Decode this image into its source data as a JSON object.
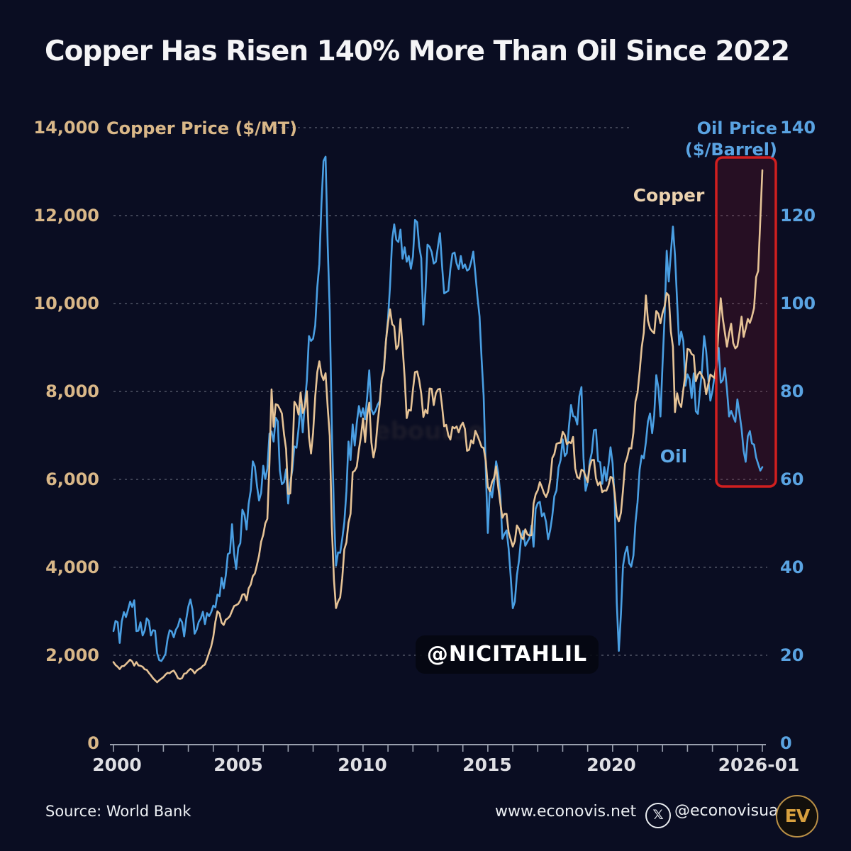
{
  "title": "Copper Has Risen 140% More Than Oil Since 2022",
  "axes": {
    "left_title": "Copper Price ($/MT)",
    "right_title": "Oil Price ($/Barrel)",
    "left_top_tick": "14,000",
    "right_top_tick": "140",
    "left_ticks": [
      "12,000",
      "10,000",
      "8,000",
      "6,000",
      "4,000",
      "2,000",
      "0"
    ],
    "right_ticks": [
      "120",
      "100",
      "80",
      "60",
      "40",
      "20",
      "0"
    ],
    "x_ticks": [
      "2000",
      "2005",
      "2010",
      "2015",
      "2020",
      "2026-01"
    ]
  },
  "series_labels": {
    "copper": "Copper",
    "oil": "Oil"
  },
  "watermark": "@NICITAHLIL",
  "faint_watermark": "ebourse",
  "footer": {
    "source": "Source: World Bank",
    "website": "www.econovis.net",
    "social": "@econovisuals",
    "x_icon_glyph": "𝕏",
    "logo": "EV"
  },
  "colors": {
    "background": "#0a0d22",
    "copper_line": "#e6c396",
    "oil_line": "#4a9fe3",
    "copper_text": "#d9b788",
    "oil_text": "#5aa3e2",
    "grid": "rgba(200,205,215,0.45)",
    "axis": "#9aa0ae",
    "highlight_red": "#d01f1f",
    "title_text": "#f4f4f6"
  },
  "chart_data": {
    "type": "line",
    "title": "Copper Has Risen 140% More Than Oil Since 2022",
    "frequency": "monthly",
    "x_start": "2000-01",
    "x_end": "2026-01",
    "x_tick_years": [
      2000,
      2005,
      2010,
      2015,
      2020,
      2026
    ],
    "y_left": {
      "label": "Copper Price ($/MT)",
      "range": [
        0,
        14000
      ],
      "tick_step": 2000
    },
    "y_right": {
      "label": "Oil Price ($/Barrel)",
      "range": [
        0,
        140
      ],
      "tick_step": 20
    },
    "grid": "dashed-horizontal",
    "highlight_box": {
      "from": "2024-02",
      "to": "2026-01",
      "color": "#d01f1f"
    },
    "series": [
      {
        "name": "Copper",
        "axis": "left",
        "units": "$/MT",
        "color": "#e6c396",
        "values": [
          1845,
          1779,
          1739,
          1685,
          1750,
          1755,
          1800,
          1848,
          1900,
          1858,
          1765,
          1845,
          1770,
          1760,
          1738,
          1680,
          1670,
          1600,
          1545,
          1480,
          1430,
          1385,
          1430,
          1468,
          1503,
          1560,
          1600,
          1590,
          1630,
          1650,
          1577,
          1480,
          1460,
          1482,
          1580,
          1590,
          1650,
          1690,
          1660,
          1590,
          1650,
          1685,
          1710,
          1760,
          1790,
          1920,
          2060,
          2200,
          2423,
          2760,
          3000,
          2950,
          2740,
          2690,
          2810,
          2840,
          2890,
          3010,
          3120,
          3140,
          3170,
          3250,
          3380,
          3390,
          3250,
          3520,
          3610,
          3800,
          3860,
          4060,
          4270,
          4580,
          4740,
          5000,
          5103,
          6388,
          8046,
          7198,
          7712,
          7690,
          7602,
          7500,
          7029,
          6691,
          5670,
          5680,
          6452,
          7766,
          7682,
          7475,
          7973,
          7510,
          7649,
          8008,
          6967,
          6588,
          7061,
          7887,
          8439,
          8685,
          8383,
          8260,
          8414,
          7635,
          6990,
          4926,
          3717,
          3072,
          3221,
          3315,
          3750,
          4407,
          4569,
          5014,
          5216,
          6165,
          6196,
          6288,
          6676,
          6982,
          7386,
          6848,
          7463,
          7745,
          6838,
          6499,
          6735,
          7284,
          7709,
          8292,
          8470,
          9147,
          9556,
          9868,
          9530,
          9483,
          8960,
          9045,
          9650,
          9041,
          8315,
          7394,
          7581,
          7565,
          8040,
          8441,
          8457,
          8260,
          7950,
          7420,
          7584,
          7500,
          8068,
          8060,
          7690,
          7962,
          8047,
          8061,
          7662,
          7207,
          7240,
          7000,
          6907,
          7193,
          7159,
          7203,
          7071,
          7215,
          7291,
          7149,
          6650,
          6674,
          6891,
          6821,
          7105,
          7000,
          6872,
          6737,
          6713,
          6420,
          5831,
          5729,
          5940,
          6037,
          6295,
          5833,
          5457,
          5127,
          5217,
          5216,
          4800,
          4639,
          4472,
          4599,
          4954,
          4873,
          4695,
          4642,
          4865,
          4751,
          4722,
          4731,
          5451,
          5660,
          5755,
          5941,
          5825,
          5684,
          5600,
          5720,
          5985,
          6486,
          6577,
          6808,
          6827,
          6834,
          7080,
          7007,
          6799,
          6852,
          6825,
          6966,
          6250,
          6051,
          6020,
          6220,
          6195,
          6075,
          5939,
          6300,
          6439,
          6445,
          6018,
          5868,
          5940,
          5710,
          5746,
          5742,
          5860,
          6059,
          6031,
          5686,
          5178,
          5048,
          5240,
          5754,
          6353,
          6499,
          6712,
          6703,
          7063,
          7772,
          7971,
          8460,
          9004,
          9336,
          10184,
          9613,
          9434,
          9370,
          9324,
          9830,
          9766,
          9550,
          9782,
          9941,
          10237,
          10183,
          9361,
          9017,
          7530,
          7959,
          7736,
          7646,
          8046,
          8392,
          8966,
          8950,
          8850,
          8823,
          8233,
          8383,
          8446,
          8352,
          8266,
          7939,
          8166,
          8386,
          8345,
          8307,
          8680,
          9466,
          10120,
          9650,
          9330,
          9020,
          9320,
          9540,
          9100,
          8980,
          9030,
          9330,
          9700,
          9240,
          9430,
          9650,
          9560,
          9700,
          9900,
          10600,
          10740,
          11900,
          13030
        ]
      },
      {
        "name": "Oil",
        "axis": "right",
        "units": "$/Barrel",
        "color": "#4a9fe3",
        "values": [
          25.5,
          27.8,
          27.5,
          22.8,
          27.7,
          29.8,
          28.7,
          30.3,
          32.2,
          31.0,
          32.5,
          25.5,
          25.6,
          27.5,
          24.5,
          25.6,
          28.4,
          27.8,
          24.5,
          25.7,
          25.6,
          20.5,
          18.9,
          18.7,
          19.4,
          20.3,
          23.7,
          25.7,
          25.4,
          24.1,
          25.8,
          26.6,
          28.3,
          27.5,
          24.3,
          28.2,
          31.1,
          32.7,
          30.4,
          24.9,
          25.8,
          27.6,
          28.4,
          29.9,
          27.1,
          29.6,
          28.9,
          29.8,
          31.3,
          30.9,
          33.8,
          33.4,
          37.6,
          35.2,
          38.2,
          43.0,
          43.3,
          49.8,
          43.1,
          39.6,
          44.5,
          45.5,
          53.1,
          51.9,
          48.6,
          54.4,
          57.5,
          64.1,
          62.9,
          58.5,
          55.2,
          56.9,
          63.1,
          60.1,
          62.4,
          70.4,
          70.9,
          68.6,
          74.0,
          73.2,
          62.0,
          58.9,
          59.4,
          62.3,
          54.5,
          59.3,
          62.1,
          67.5,
          67.2,
          71.5,
          77.0,
          70.7,
          77.2,
          82.5,
          92.6,
          91.5,
          92.0,
          95.0,
          103.7,
          109.0,
          122.8,
          132.4,
          133.4,
          113.2,
          98.1,
          71.9,
          52.5,
          40.4,
          43.4,
          43.3,
          46.5,
          50.2,
          57.3,
          68.6,
          64.4,
          72.5,
          67.7,
          72.8,
          76.7,
          74.3,
          76.2,
          73.7,
          78.8,
          84.8,
          75.9,
          74.8,
          75.6,
          77.0,
          77.8,
          82.7,
          85.3,
          91.4,
          96.5,
          104.0,
          114.6,
          118.0,
          114.5,
          114.0,
          116.8,
          110.2,
          112.8,
          109.5,
          110.8,
          107.9,
          110.7,
          119.0,
          118.5,
          113.0,
          110.3,
          95.2,
          102.6,
          113.4,
          112.9,
          111.7,
          109.1,
          109.5,
          112.9,
          116.0,
          108.5,
          102.3,
          102.6,
          102.9,
          107.9,
          111.3,
          111.6,
          109.1,
          107.8,
          110.8,
          108.1,
          108.9,
          107.5,
          107.8,
          109.5,
          111.8,
          106.8,
          101.6,
          97.1,
          87.4,
          79.0,
          62.3,
          47.8,
          58.1,
          55.9,
          59.5,
          64.1,
          61.5,
          56.6,
          46.5,
          47.6,
          48.4,
          44.3,
          38.0,
          30.7,
          32.2,
          38.2,
          41.6,
          46.7,
          48.3,
          44.9,
          45.8,
          46.6,
          49.5,
          44.7,
          53.3,
          54.6,
          54.9,
          51.6,
          52.3,
          50.3,
          46.4,
          48.5,
          51.7,
          56.2,
          57.5,
          62.7,
          64.4,
          69.1,
          65.3,
          66.0,
          72.1,
          76.9,
          74.4,
          74.2,
          72.5,
          78.9,
          81.0,
          64.8,
          57.4,
          59.4,
          64.0,
          66.1,
          71.2,
          71.3,
          64.2,
          63.9,
          59.0,
          62.8,
          59.7,
          63.2,
          67.3,
          63.7,
          55.5,
          32.0,
          21.0,
          29.4,
          40.3,
          43.2,
          44.7,
          40.9,
          40.2,
          42.7,
          50.2,
          54.8,
          62.3,
          65.4,
          64.8,
          68.5,
          73.2,
          75.0,
          70.5,
          74.6,
          83.7,
          80.8,
          74.3,
          86.0,
          97.1,
          112.0,
          105.0,
          111.5,
          117.5,
          111.0,
          100.5,
          90.6,
          93.6,
          91.4,
          81.3,
          83.9,
          82.8,
          78.5,
          84.1,
          75.5,
          74.9,
          80.1,
          85.1,
          92.6,
          89.1,
          82.9,
          77.9,
          80.1,
          83.5,
          85.4,
          89.9,
          82.0,
          82.6,
          85.3,
          80.4,
          74.3,
          75.6,
          74.3,
          73.1,
          78.2,
          75.1,
          71.5,
          66.5,
          64.0,
          69.8,
          71.0,
          68.2,
          67.9,
          65.0,
          63.5,
          62.0,
          62.8
        ]
      }
    ]
  }
}
